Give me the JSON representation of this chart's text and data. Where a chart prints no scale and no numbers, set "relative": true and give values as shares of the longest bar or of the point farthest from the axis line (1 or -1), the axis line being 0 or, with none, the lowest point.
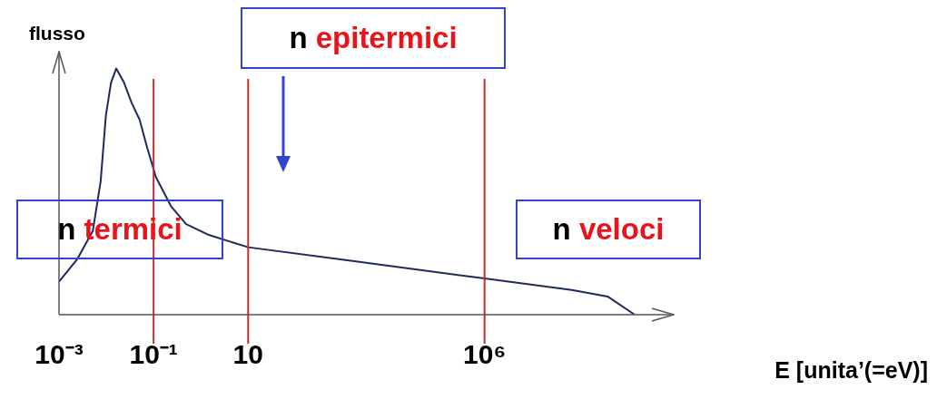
{
  "chart_data": {
    "type": "line",
    "relative": true,
    "log": "x",
    "grid": false,
    "legend": false,
    "marker": "none",
    "tick_labels": "x",
    "color": "#1f2a5a",
    "x": [
      0.001,
      0.0024,
      0.0052,
      0.0076,
      0.0098,
      0.0126,
      0.0162,
      0.0237,
      0.0345,
      0.0505,
      0.0738,
      0.112,
      0.233,
      0.488,
      1.47,
      10,
      980,
      1000000,
      70000000,
      400000000,
      1500000000
    ],
    "values": [
      0.134,
      0.224,
      0.341,
      0.542,
      0.809,
      0.943,
      1,
      0.943,
      0.86,
      0.793,
      0.676,
      0.559,
      0.441,
      0.368,
      0.324,
      0.274,
      0.224,
      0.147,
      0.1,
      0.074,
      0
    ],
    "xlim": [
      0.001,
      10000000000
    ],
    "xticks": [
      {
        "value": 0.001,
        "label": "10⁻³"
      },
      {
        "value": 0.1,
        "label": "10⁻¹"
      },
      10,
      {
        "value": 1000000,
        "label": "10⁶"
      }
    ],
    "xlabel": "E [unita’(=eV)]",
    "ylabel": "flusso",
    "ref_lines": [
      {
        "axis": "x",
        "value": 0.1,
        "color": "#b83232"
      },
      {
        "axis": "x",
        "value": 10,
        "color": "#b83232"
      },
      {
        "axis": "x",
        "value": 1000000,
        "color": "#b83232"
      }
    ],
    "annotations": [
      "n termici",
      "n epitermici",
      "n veloci"
    ]
  }
}
